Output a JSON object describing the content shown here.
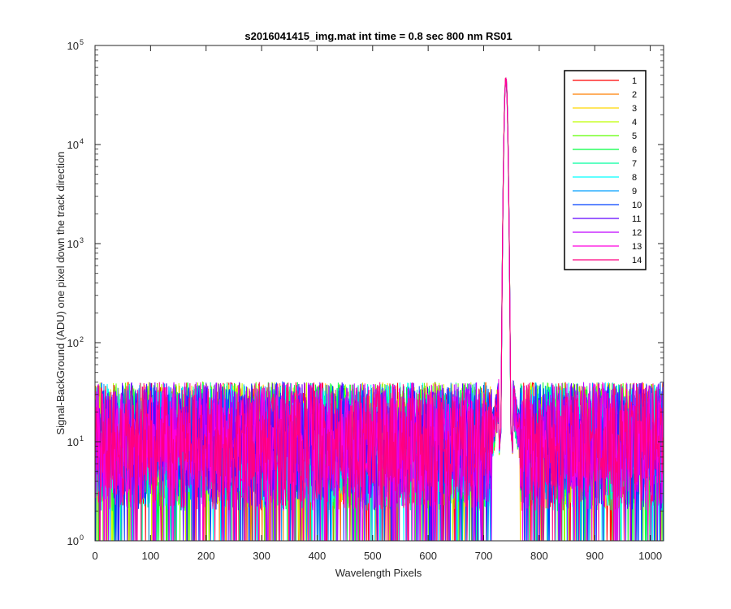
{
  "chart_data": {
    "type": "line",
    "title": "s2016041415_img.mat int time = 0.8 sec  800 nm RS01",
    "xlabel": "Wavelength Pixels",
    "ylabel": "Signal-BackGround (ADU) one pixel down the track direction",
    "xlim": [
      0,
      1024
    ],
    "ylim": [
      1,
      100000
    ],
    "yscale": "log",
    "grid": false,
    "legend_position": "top-right",
    "x_ticks": [
      "0",
      "100",
      "200",
      "300",
      "400",
      "500",
      "600",
      "700",
      "800",
      "900",
      "1000"
    ],
    "y_ticks": [
      {
        "base": "10",
        "exp": "0",
        "value": 1
      },
      {
        "base": "10",
        "exp": "1",
        "value": 10
      },
      {
        "base": "10",
        "exp": "2",
        "value": 100
      },
      {
        "base": "10",
        "exp": "3",
        "value": 1000
      },
      {
        "base": "10",
        "exp": "4",
        "value": 10000
      },
      {
        "base": "10",
        "exp": "5",
        "value": 100000
      }
    ],
    "peak": {
      "x": 740,
      "y": 47000
    },
    "noise_floor": {
      "typical": 10,
      "min": 1,
      "max": 40
    },
    "series": [
      {
        "name": "1",
        "color": "#FF0000"
      },
      {
        "name": "2",
        "color": "#FF7F00"
      },
      {
        "name": "3",
        "color": "#FFD700"
      },
      {
        "name": "4",
        "color": "#BFFF00"
      },
      {
        "name": "5",
        "color": "#5FFF00"
      },
      {
        "name": "6",
        "color": "#00FF40"
      },
      {
        "name": "7",
        "color": "#00FF9F"
      },
      {
        "name": "8",
        "color": "#00FFFF"
      },
      {
        "name": "9",
        "color": "#009FFF"
      },
      {
        "name": "10",
        "color": "#0040FF"
      },
      {
        "name": "11",
        "color": "#5F00FF"
      },
      {
        "name": "12",
        "color": "#BF00FF"
      },
      {
        "name": "13",
        "color": "#FF00DF"
      },
      {
        "name": "14",
        "color": "#FF0080"
      }
    ]
  }
}
